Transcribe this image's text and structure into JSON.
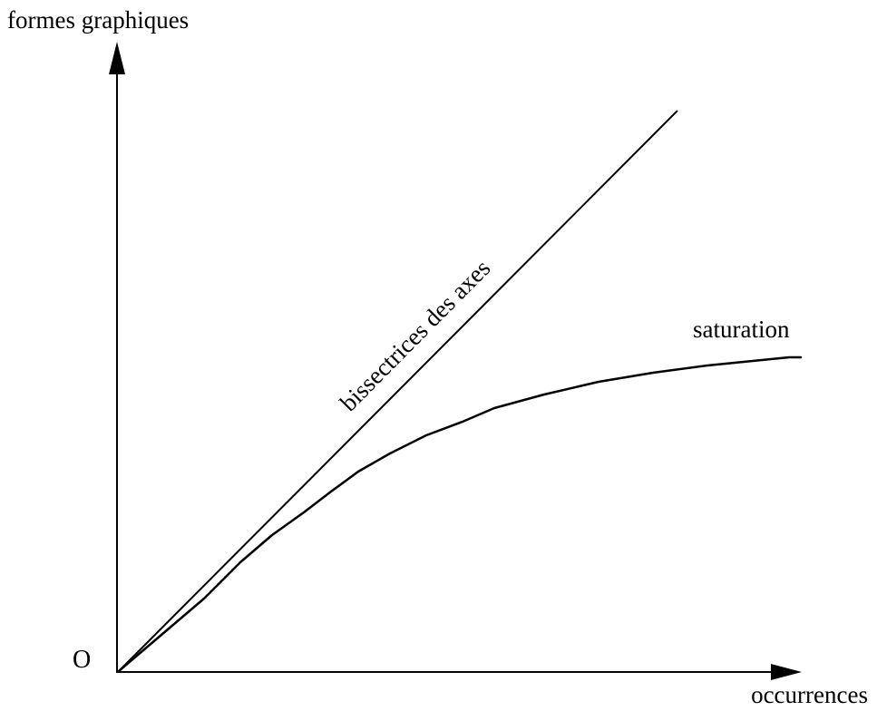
{
  "labels": {
    "y_axis": "formes graphiques",
    "x_axis": "occurrences",
    "origin": "O",
    "bisector": "bissectrices des axes",
    "saturation": "saturation"
  },
  "colors": {
    "stroke": "#000000",
    "background": "#ffffff"
  }
}
